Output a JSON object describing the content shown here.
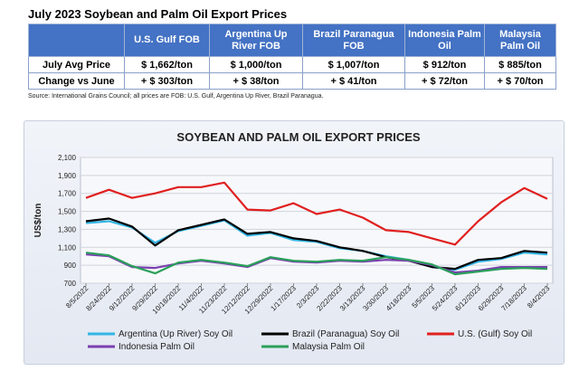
{
  "page": {
    "title": "July 2023 Soybean and Palm Oil Export Prices",
    "source": "Source: International Grains Council; all prices are FOB: U.S. Gulf, Argentina Up River, Brazil Paranagua."
  },
  "table": {
    "columns": [
      "U.S. Gulf FOB",
      "Argentina Up River FOB",
      "Brazil Paranagua FOB",
      "Indonesia Palm Oil",
      "Malaysia Palm Oil"
    ],
    "rows": [
      {
        "label": "July Avg Price",
        "values": [
          "$ 1,662/ton",
          "$ 1,000/ton",
          "$ 1,007/ton",
          "$ 912/ton",
          "$ 885/ton"
        ]
      },
      {
        "label": "Change vs June",
        "values": [
          "+ $ 303/ton",
          "+ $ 38/ton",
          "+ $ 41/ton",
          "+ $ 72/ton",
          "+ $ 70/ton"
        ]
      }
    ],
    "colors": {
      "header_bg": "#4472c4",
      "header_text": "#ffffff"
    }
  },
  "chart_data": {
    "type": "line",
    "title": "SOYBEAN AND PALM OIL EXPORT PRICES",
    "ylabel": "US$/ton",
    "xlabel": "",
    "ylim": [
      700,
      2100
    ],
    "yticks": [
      "700",
      "900",
      "1,100",
      "1,300",
      "1,500",
      "1,700",
      "1,900",
      "2,100"
    ],
    "ytick_values": [
      700,
      900,
      1100,
      1300,
      1500,
      1700,
      1900,
      2100
    ],
    "x": [
      "8/5/2022",
      "8/24/2022",
      "9/12/2022",
      "9/29/2022",
      "10/18/2022",
      "11/4/2022",
      "11/23/2022",
      "12/12/2022",
      "12/29/2022",
      "1/17/2023",
      "2/3/2023",
      "2/22/2023",
      "3/13/2023",
      "3/30/2023",
      "4/18/2023",
      "5/5/2023",
      "5/24/2023",
      "6/12/2023",
      "6/29/2023",
      "7/18/2023",
      "8/4/2023"
    ],
    "grid": true,
    "legend_position": "bottom",
    "series": [
      {
        "name": "Argentina (Up River) Soy Oil",
        "color": "#33b5e5",
        "values": [
          1370,
          1390,
          1320,
          1150,
          1280,
          1340,
          1400,
          1230,
          1260,
          1180,
          1160,
          1090,
          1060,
          1000,
          960,
          880,
          850,
          940,
          970,
          1040,
          1020
        ]
      },
      {
        "name": "Brazil (Paranagua) Soy Oil",
        "color": "#000000",
        "values": [
          1390,
          1420,
          1330,
          1120,
          1290,
          1350,
          1410,
          1250,
          1270,
          1200,
          1170,
          1100,
          1060,
          990,
          950,
          880,
          860,
          960,
          980,
          1060,
          1040
        ]
      },
      {
        "name": "U.S. (Gulf) Soy Oil",
        "color": "#e02020",
        "values": [
          1650,
          1740,
          1650,
          1700,
          1770,
          1770,
          1820,
          1520,
          1510,
          1590,
          1470,
          1520,
          1430,
          1290,
          1270,
          1200,
          1130,
          1390,
          1600,
          1760,
          1640
        ]
      },
      {
        "name": "Indonesia Palm Oil",
        "color": "#7a3fb0",
        "values": [
          1020,
          1000,
          880,
          870,
          920,
          950,
          920,
          880,
          980,
          940,
          930,
          950,
          940,
          960,
          950,
          900,
          820,
          840,
          880,
          880,
          880
        ]
      },
      {
        "name": "Malaysia Palm Oil",
        "color": "#2aa05a",
        "values": [
          1040,
          1010,
          890,
          810,
          930,
          960,
          930,
          890,
          990,
          950,
          940,
          960,
          950,
          990,
          960,
          910,
          800,
          830,
          860,
          870,
          860
        ]
      }
    ]
  }
}
